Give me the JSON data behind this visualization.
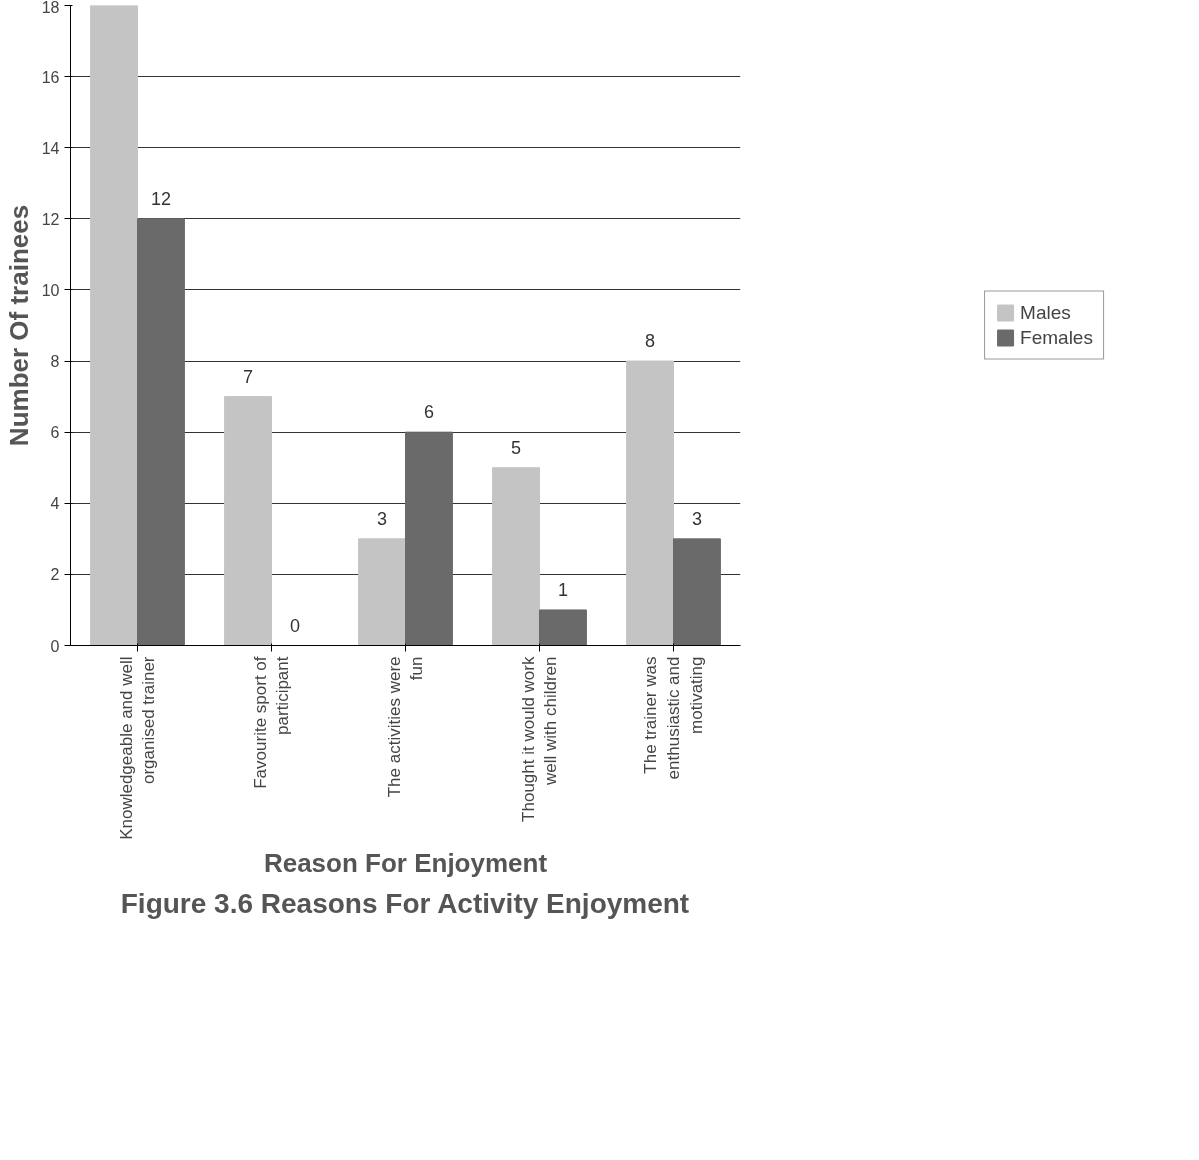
{
  "chart_data": {
    "type": "bar",
    "title": "Figure 3.6 Reasons For Activity Enjoyment",
    "xlabel": "Reason For Enjoyment",
    "ylabel": "Number Of trainees",
    "categories": [
      "Knowledgeable and well organised trainer",
      "Favourite sport of participant",
      "The activities were fun",
      "Thought it would work well with children",
      "The trainer was enthusiastic and motivating"
    ],
    "series": [
      {
        "name": "Males",
        "color": "#c4c4c4",
        "values": [
          18,
          7,
          3,
          5,
          8
        ],
        "value_labels": [
          null,
          "7",
          "3",
          "5",
          "8"
        ]
      },
      {
        "name": "Females",
        "color": "#6a6a6a",
        "values": [
          12,
          0,
          6,
          1,
          3
        ],
        "value_labels": [
          "12",
          "0",
          "6",
          "1",
          "3"
        ]
      }
    ],
    "ylim": [
      0,
      18
    ],
    "yticks": [
      0,
      2,
      4,
      6,
      8,
      10,
      12,
      14,
      16,
      18
    ],
    "grid": "y",
    "legend": "right"
  }
}
